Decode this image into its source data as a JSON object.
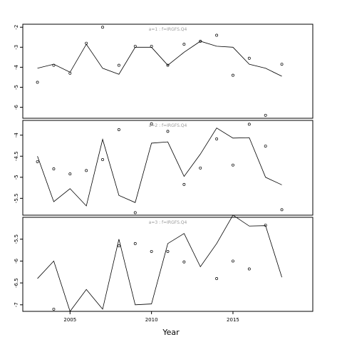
{
  "chart_data": {
    "type": "line",
    "xlabel": "Year",
    "x_ticks": [
      2005,
      2010,
      2015
    ],
    "xlim": [
      2002.1,
      2019.9
    ],
    "panels": [
      {
        "label": "a=1  :  f=IRGFS.Q4",
        "ylim": [
          -6.55,
          -1.85
        ],
        "y_ticks": [
          -2,
          -3,
          -4,
          -5,
          -6
        ],
        "years": [
          2003,
          2004,
          2005,
          2006,
          2007,
          2008,
          2009,
          2010,
          2011,
          2012,
          2013,
          2014,
          2015,
          2016,
          2017,
          2018
        ],
        "fitted": [
          -4.05,
          -3.85,
          -4.25,
          -2.85,
          -4.05,
          -4.35,
          -3.0,
          -3.0,
          -3.9,
          -3.25,
          -2.7,
          -2.95,
          -3.0,
          -3.85,
          -4.05,
          -4.45
        ],
        "observed": [
          -4.75,
          -3.9,
          -4.3,
          -2.8,
          -2.0,
          -3.9,
          -2.95,
          -2.95,
          -3.9,
          -2.85,
          -2.7,
          -2.4,
          -4.4,
          -3.55,
          -6.4,
          -3.85
        ]
      },
      {
        "label": "a=2  :  f=IRGFS.Q4",
        "ylim": [
          -5.9,
          -3.65
        ],
        "y_ticks": [
          -4.0,
          -4.5,
          -5.0,
          -5.5
        ],
        "years": [
          2003,
          2004,
          2005,
          2006,
          2007,
          2008,
          2009,
          2010,
          2011,
          2012,
          2013,
          2014,
          2015,
          2016,
          2017,
          2018
        ],
        "fitted": [
          -4.5,
          -5.58,
          -5.27,
          -5.68,
          -4.1,
          -5.43,
          -5.6,
          -4.19,
          -4.16,
          -4.98,
          -4.45,
          -3.83,
          -4.07,
          -4.06,
          -5.0,
          -5.18
        ],
        "observed": [
          -4.63,
          -4.8,
          -4.92,
          -4.84,
          -4.58,
          -3.87,
          -5.84,
          -3.73,
          -3.91,
          -5.17,
          -4.78,
          -4.09,
          -4.71,
          -3.74,
          -4.26,
          -5.77
        ]
      },
      {
        "label": "a=3  :  f=IRGFS.Q4",
        "ylim": [
          -7.15,
          -5.0
        ],
        "y_ticks": [
          -5.5,
          -6.0,
          -6.5,
          -7.0
        ],
        "years": [
          2003,
          2004,
          2005,
          2006,
          2007,
          2008,
          2009,
          2010,
          2011,
          2012,
          2013,
          2014,
          2015,
          2016,
          2017,
          2018
        ],
        "fitted": [
          -6.4,
          -6.0,
          -7.15,
          -6.65,
          -7.1,
          -5.5,
          -7.0,
          -6.98,
          -5.6,
          -5.37,
          -6.13,
          -5.6,
          -4.95,
          -5.2,
          -5.19,
          -6.37
        ],
        "observed": [
          null,
          -7.1,
          null,
          null,
          null,
          -5.65,
          -5.6,
          -5.78,
          -5.78,
          -6.02,
          null,
          -6.4,
          -6.0,
          -6.18,
          -5.18,
          null
        ]
      }
    ]
  }
}
